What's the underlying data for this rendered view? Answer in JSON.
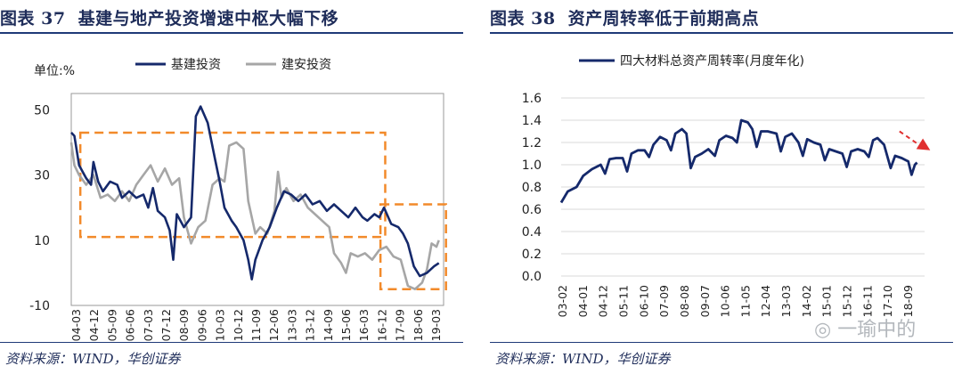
{
  "colors": {
    "navy": "#1f2d5a",
    "series_main": "#15296b",
    "series_grey": "#a6a6a6",
    "box": "#f28a2a",
    "arrow": "#e03030",
    "rule": "#1f3a78"
  },
  "left": {
    "fig_tag": "图表 37",
    "fig_title": "基建与地产投资增速中枢大幅下移",
    "source": "资料来源：WIND，华创证券"
  },
  "right": {
    "fig_tag": "图表 38",
    "fig_title": "资产周转率低于前期高点",
    "source": "资料来源：WIND，华创证券"
  },
  "watermark": "一瑜中的",
  "chart_data": [
    {
      "type": "line",
      "title": "基建与地产投资增速中枢大幅下移",
      "unit_label": "单位:%",
      "ylim": [
        -10,
        55
      ],
      "yticks": [
        50,
        30,
        10,
        -10
      ],
      "x_start": 2004.17,
      "x_end": 2019.8,
      "x_tick_labels": [
        "04-03",
        "04-12",
        "05-09",
        "06-06",
        "07-03",
        "07-12",
        "08-09",
        "09-06",
        "10-03",
        "10-12",
        "11-09",
        "12-06",
        "13-03",
        "13-12",
        "14-09",
        "15-06",
        "16-03",
        "16-12",
        "17-09",
        "18-06",
        "19-03"
      ],
      "series": [
        {
          "name": "基建投资",
          "points": [
            [
              2004.17,
              43
            ],
            [
              2004.3,
              42
            ],
            [
              2004.5,
              33
            ],
            [
              2004.8,
              29
            ],
            [
              2005.0,
              27
            ],
            [
              2005.1,
              34
            ],
            [
              2005.3,
              28
            ],
            [
              2005.5,
              25
            ],
            [
              2005.8,
              28
            ],
            [
              2006.1,
              27
            ],
            [
              2006.3,
              23
            ],
            [
              2006.6,
              25
            ],
            [
              2006.9,
              23
            ],
            [
              2007.2,
              24
            ],
            [
              2007.4,
              20
            ],
            [
              2007.6,
              26
            ],
            [
              2007.8,
              19
            ],
            [
              2008.1,
              17
            ],
            [
              2008.3,
              13
            ],
            [
              2008.45,
              4
            ],
            [
              2008.6,
              18
            ],
            [
              2008.9,
              14
            ],
            [
              2009.2,
              17
            ],
            [
              2009.4,
              48
            ],
            [
              2009.6,
              51
            ],
            [
              2009.9,
              46
            ],
            [
              2010.2,
              35
            ],
            [
              2010.4,
              28
            ],
            [
              2010.6,
              20
            ],
            [
              2010.9,
              16
            ],
            [
              2011.1,
              14
            ],
            [
              2011.4,
              10
            ],
            [
              2011.6,
              4
            ],
            [
              2011.75,
              -2
            ],
            [
              2011.9,
              4
            ],
            [
              2012.2,
              10
            ],
            [
              2012.5,
              14
            ],
            [
              2012.8,
              20
            ],
            [
              2013.1,
              25
            ],
            [
              2013.4,
              24
            ],
            [
              2013.7,
              22
            ],
            [
              2014.0,
              24
            ],
            [
              2014.3,
              21
            ],
            [
              2014.6,
              22
            ],
            [
              2014.9,
              19
            ],
            [
              2015.2,
              21
            ],
            [
              2015.5,
              19
            ],
            [
              2015.8,
              17
            ],
            [
              2016.1,
              20
            ],
            [
              2016.4,
              17
            ],
            [
              2016.6,
              16
            ],
            [
              2016.9,
              18
            ],
            [
              2017.1,
              17
            ],
            [
              2017.3,
              20
            ],
            [
              2017.6,
              15
            ],
            [
              2017.9,
              14
            ],
            [
              2018.1,
              12
            ],
            [
              2018.3,
              9
            ],
            [
              2018.55,
              2
            ],
            [
              2018.8,
              -1
            ],
            [
              2019.1,
              0
            ],
            [
              2019.4,
              2
            ],
            [
              2019.6,
              3
            ]
          ]
        },
        {
          "name": "建安投资",
          "points": [
            [
              2004.17,
              40
            ],
            [
              2004.3,
              33
            ],
            [
              2004.5,
              30
            ],
            [
              2004.8,
              27
            ],
            [
              2005.1,
              30
            ],
            [
              2005.4,
              23
            ],
            [
              2005.7,
              24
            ],
            [
              2006.0,
              22
            ],
            [
              2006.3,
              25
            ],
            [
              2006.6,
              22
            ],
            [
              2006.9,
              27
            ],
            [
              2007.2,
              30
            ],
            [
              2007.5,
              33
            ],
            [
              2007.8,
              28
            ],
            [
              2008.1,
              32
            ],
            [
              2008.4,
              27
            ],
            [
              2008.7,
              29
            ],
            [
              2008.9,
              17
            ],
            [
              2009.2,
              9
            ],
            [
              2009.5,
              14
            ],
            [
              2009.8,
              16
            ],
            [
              2010.1,
              27
            ],
            [
              2010.4,
              29
            ],
            [
              2010.6,
              28
            ],
            [
              2010.8,
              39
            ],
            [
              2011.1,
              40
            ],
            [
              2011.4,
              38
            ],
            [
              2011.6,
              22
            ],
            [
              2011.9,
              12
            ],
            [
              2012.1,
              14
            ],
            [
              2012.4,
              12
            ],
            [
              2012.7,
              19
            ],
            [
              2012.85,
              31
            ],
            [
              2013.0,
              23
            ],
            [
              2013.2,
              26
            ],
            [
              2013.5,
              22
            ],
            [
              2013.8,
              24
            ],
            [
              2014.1,
              20
            ],
            [
              2014.4,
              18
            ],
            [
              2014.7,
              16
            ],
            [
              2015.0,
              14
            ],
            [
              2015.2,
              6
            ],
            [
              2015.5,
              3
            ],
            [
              2015.7,
              0
            ],
            [
              2015.9,
              6
            ],
            [
              2016.2,
              5
            ],
            [
              2016.5,
              6
            ],
            [
              2016.8,
              4
            ],
            [
              2017.1,
              7
            ],
            [
              2017.4,
              8
            ],
            [
              2017.7,
              5
            ],
            [
              2018.0,
              4
            ],
            [
              2018.3,
              -4
            ],
            [
              2018.6,
              -5
            ],
            [
              2018.9,
              -3
            ],
            [
              2019.1,
              1
            ],
            [
              2019.3,
              9
            ],
            [
              2019.5,
              8
            ],
            [
              2019.6,
              10
            ]
          ]
        }
      ],
      "annotations": [
        {
          "shape": "dashed-box",
          "x0": 2004.55,
          "x1": 2017.35,
          "y0": 11,
          "y1": 43
        },
        {
          "shape": "dashed-box",
          "x0": 2017.15,
          "x1": 2019.9,
          "y0": -5,
          "y1": 21
        }
      ]
    },
    {
      "type": "line",
      "title": "资产周转率低于前期高点",
      "legend": "四大材料总资产周转率(月度年化)",
      "ylim": [
        0,
        1.6
      ],
      "yticks": [
        0.0,
        0.2,
        0.4,
        0.6,
        0.8,
        1.0,
        1.2,
        1.4,
        1.6
      ],
      "yticks_text": [
        "0.0",
        "0.2",
        "0.4",
        "0.6",
        "0.8",
        "1.0",
        "1.2",
        "1.4",
        "1.6"
      ],
      "x_start": 2003.1,
      "x_end": 2019.4,
      "x_tick_labels": [
        "03-02",
        "04-01",
        "04-12",
        "05-11",
        "06-10",
        "07-09",
        "08-08",
        "09-07",
        "10-06",
        "11-05",
        "12-04",
        "13-03",
        "14-02",
        "15-01",
        "15-12",
        "16-11",
        "17-10",
        "18-09"
      ],
      "series": [
        {
          "name": "四大材料总资产周转率(月度年化)",
          "points": [
            [
              2003.1,
              0.66
            ],
            [
              2003.4,
              0.76
            ],
            [
              2003.8,
              0.8
            ],
            [
              2004.1,
              0.9
            ],
            [
              2004.5,
              0.96
            ],
            [
              2004.9,
              1.0
            ],
            [
              2005.1,
              0.92
            ],
            [
              2005.3,
              1.05
            ],
            [
              2005.6,
              1.06
            ],
            [
              2005.9,
              1.06
            ],
            [
              2006.1,
              0.94
            ],
            [
              2006.3,
              1.1
            ],
            [
              2006.6,
              1.13
            ],
            [
              2006.9,
              1.13
            ],
            [
              2007.1,
              1.07
            ],
            [
              2007.3,
              1.18
            ],
            [
              2007.6,
              1.25
            ],
            [
              2007.9,
              1.22
            ],
            [
              2008.1,
              1.13
            ],
            [
              2008.3,
              1.28
            ],
            [
              2008.6,
              1.32
            ],
            [
              2008.8,
              1.28
            ],
            [
              2009.0,
              0.97
            ],
            [
              2009.2,
              1.07
            ],
            [
              2009.5,
              1.1
            ],
            [
              2009.8,
              1.14
            ],
            [
              2010.1,
              1.08
            ],
            [
              2010.3,
              1.22
            ],
            [
              2010.6,
              1.26
            ],
            [
              2010.9,
              1.24
            ],
            [
              2011.1,
              1.2
            ],
            [
              2011.3,
              1.4
            ],
            [
              2011.6,
              1.38
            ],
            [
              2011.8,
              1.32
            ],
            [
              2012.0,
              1.16
            ],
            [
              2012.2,
              1.3
            ],
            [
              2012.5,
              1.3
            ],
            [
              2012.9,
              1.28
            ],
            [
              2013.1,
              1.12
            ],
            [
              2013.3,
              1.25
            ],
            [
              2013.6,
              1.28
            ],
            [
              2013.9,
              1.2
            ],
            [
              2014.1,
              1.08
            ],
            [
              2014.3,
              1.23
            ],
            [
              2014.6,
              1.2
            ],
            [
              2014.9,
              1.18
            ],
            [
              2015.1,
              1.04
            ],
            [
              2015.3,
              1.14
            ],
            [
              2015.6,
              1.12
            ],
            [
              2015.9,
              1.1
            ],
            [
              2016.1,
              0.98
            ],
            [
              2016.3,
              1.12
            ],
            [
              2016.6,
              1.14
            ],
            [
              2016.9,
              1.12
            ],
            [
              2017.1,
              1.07
            ],
            [
              2017.3,
              1.22
            ],
            [
              2017.5,
              1.24
            ],
            [
              2017.8,
              1.18
            ],
            [
              2018.1,
              0.97
            ],
            [
              2018.3,
              1.08
            ],
            [
              2018.6,
              1.06
            ],
            [
              2018.9,
              1.03
            ],
            [
              2019.05,
              0.91
            ],
            [
              2019.2,
              1.0
            ],
            [
              2019.3,
              1.02
            ]
          ]
        }
      ],
      "annotations": [
        {
          "shape": "trend-arrow",
          "x0": 2018.5,
          "y0": 1.3,
          "x1": 2019.9,
          "y1": 1.13
        }
      ]
    }
  ]
}
